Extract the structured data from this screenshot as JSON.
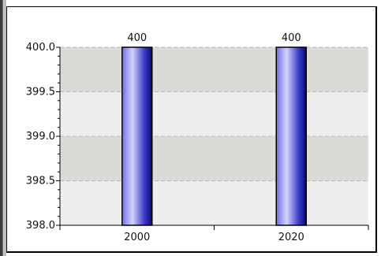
{
  "chart_data": {
    "type": "bar",
    "categories": [
      "2000",
      "2020"
    ],
    "values": [
      400,
      400
    ],
    "data_labels": [
      "400",
      "400"
    ],
    "title": "",
    "xlabel": "",
    "ylabel": "",
    "ylim": [
      398.0,
      400.0
    ],
    "yticks": [
      "400.0",
      "399.5",
      "399.0",
      "398.5",
      "398.0"
    ],
    "grid": "alternating horizontal bands with dashed lines",
    "colors": {
      "band_dark": "#dcdbd6",
      "band_light": "#eeeeee",
      "bar_light": "#c8c8ff",
      "bar_mid": "#7575e8",
      "bar_dark": "#0a0a7a"
    }
  }
}
